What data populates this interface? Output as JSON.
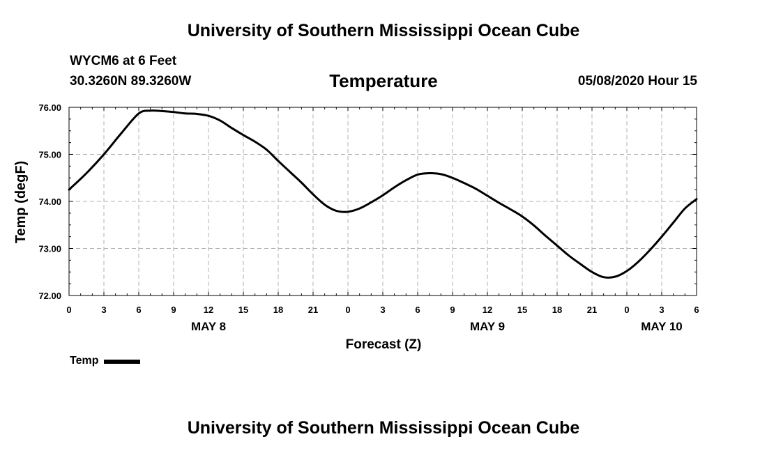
{
  "header": {
    "title_top": "University of Southern Mississippi Ocean Cube",
    "title_bottom": "University of Southern Mississippi Ocean Cube",
    "station": "WYCM6 at 6 Feet",
    "coords": "30.3260N 89.3260W",
    "datetime": "05/08/2020 Hour 15"
  },
  "legend": {
    "label": "Temp"
  },
  "colors": {
    "line": "#000000",
    "grid": "#b0b0b0",
    "axis": "#000000"
  },
  "chart_data": {
    "type": "line",
    "title": "Temperature",
    "xlabel": "Forecast (Z)",
    "ylabel": "Temp (degF)",
    "xlim": [
      0,
      54
    ],
    "ylim": [
      72.0,
      76.0
    ],
    "grid": true,
    "yticks": [
      72.0,
      73.0,
      74.0,
      75.0,
      76.0
    ],
    "ytick_labels": [
      "72.00",
      "73.00",
      "74.00",
      "75.00",
      "76.00"
    ],
    "xticks": [
      0,
      3,
      6,
      9,
      12,
      15,
      18,
      21,
      24,
      27,
      30,
      33,
      36,
      39,
      42,
      45,
      48,
      51,
      54
    ],
    "xtick_labels": [
      "0",
      "3",
      "6",
      "9",
      "12",
      "15",
      "18",
      "21",
      "0",
      "3",
      "6",
      "9",
      "12",
      "15",
      "18",
      "21",
      "0",
      "3",
      "6"
    ],
    "date_labels": [
      {
        "x": 12,
        "label": "MAY 8"
      },
      {
        "x": 36,
        "label": "MAY 9"
      },
      {
        "x": 51,
        "label": "MAY 10"
      }
    ],
    "series": [
      {
        "name": "Temp",
        "x": [
          0,
          1.5,
          3,
          4.5,
          6,
          7,
          8,
          9,
          10,
          11,
          12,
          13,
          14,
          15,
          16,
          17,
          18,
          19,
          20,
          21,
          22,
          23,
          24,
          25,
          26,
          27,
          28,
          29,
          30,
          31,
          32,
          33,
          34,
          35,
          36,
          37,
          38,
          39,
          40,
          41,
          42,
          43,
          44,
          45,
          46,
          47,
          48,
          49,
          50,
          51,
          52,
          53,
          54
        ],
        "values": [
          74.25,
          74.6,
          75.0,
          75.45,
          75.87,
          75.93,
          75.92,
          75.9,
          75.87,
          75.86,
          75.82,
          75.72,
          75.56,
          75.41,
          75.27,
          75.1,
          74.86,
          74.63,
          74.4,
          74.15,
          73.93,
          73.8,
          73.78,
          73.85,
          73.98,
          74.13,
          74.3,
          74.45,
          74.57,
          74.6,
          74.58,
          74.5,
          74.39,
          74.27,
          74.12,
          73.97,
          73.83,
          73.68,
          73.49,
          73.27,
          73.06,
          72.85,
          72.67,
          72.5,
          72.39,
          72.4,
          72.52,
          72.72,
          72.97,
          73.25,
          73.55,
          73.85,
          74.05
        ]
      }
    ]
  }
}
